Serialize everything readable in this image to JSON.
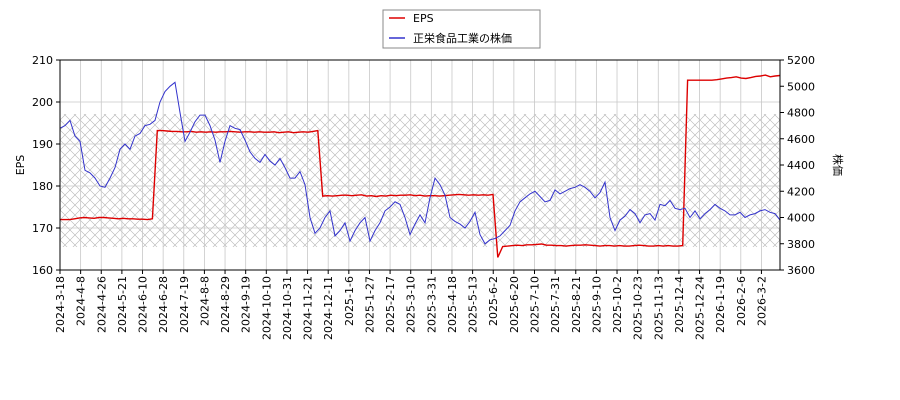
{
  "chart_data": {
    "type": "line",
    "legend": {
      "placement": "top-center",
      "entries": [
        {
          "label": "EPS",
          "color": "#dd0000"
        },
        {
          "label": "正栄食品工業の株価",
          "color": "#3333cc"
        }
      ]
    },
    "left_axis": {
      "label": "EPS",
      "ylim": [
        160,
        210
      ],
      "ticks": [
        160,
        170,
        180,
        190,
        200,
        210
      ]
    },
    "right_axis": {
      "label": "株価",
      "ylim": [
        3600,
        5200
      ],
      "ticks": [
        3600,
        3800,
        4000,
        4200,
        4400,
        4600,
        4800,
        5000,
        5200
      ]
    },
    "grid": true,
    "x_tick_labels": [
      "2024-3-18",
      "2024-4-8",
      "2024-4-26",
      "2024-5-21",
      "2024-6-10",
      "2024-6-28",
      "2024-7-19",
      "2024-8-8",
      "2024-8-29",
      "2024-9-19",
      "2024-10-10",
      "2024-10-31",
      "2024-11-21",
      "2024-12-11",
      "2025-1-6",
      "2025-1-27",
      "2025-2-17",
      "2025-3-10",
      "2025-3-31",
      "2025-4-18",
      "2025-5-13",
      "2025-6-2",
      "2025-6-20",
      "2025-7-10",
      "2025-7-31",
      "2025-8-21",
      "2025-9-10",
      "2025-10-2",
      "2025-10-23",
      "2025-11-13",
      "2025-12-4",
      "2025-12-24",
      "2026-1-19",
      "2026-2-6",
      "2026-3-2"
    ],
    "series": [
      {
        "name": "EPS",
        "axis": "left",
        "color": "#dd0000",
        "values": [
          172,
          172,
          172,
          172.2,
          172.4,
          172.5,
          172.4,
          172.3,
          172.5,
          172.5,
          172.4,
          172.3,
          172.2,
          172.3,
          172.2,
          172.2,
          172.1,
          172.1,
          172.0,
          172.2,
          193.2,
          193.2,
          193.1,
          193.0,
          193.0,
          192.9,
          192.9,
          193.0,
          192.8,
          192.9,
          192.8,
          192.9,
          192.8,
          192.9,
          192.9,
          193.0,
          192.9,
          192.8,
          192.9,
          192.9,
          192.8,
          192.9,
          192.8,
          192.8,
          192.9,
          192.7,
          192.8,
          192.9,
          192.7,
          192.8,
          192.9,
          192.8,
          193.0,
          193.2,
          177.6,
          177.7,
          177.6,
          177.7,
          177.8,
          177.8,
          177.7,
          177.8,
          177.9,
          177.6,
          177.7,
          177.5,
          177.7,
          177.6,
          177.8,
          177.7,
          177.8,
          177.8,
          177.9,
          177.7,
          177.8,
          177.6,
          177.7,
          177.7,
          177.6,
          177.7,
          177.8,
          177.9,
          178.0,
          177.9,
          177.8,
          177.9,
          177.8,
          177.9,
          177.8,
          178.0,
          163.0,
          165.6,
          165.7,
          165.8,
          165.9,
          165.8,
          166.0,
          166.0,
          166.1,
          166.2,
          165.9,
          165.9,
          165.8,
          165.8,
          165.7,
          165.8,
          165.9,
          165.9,
          166.0,
          165.9,
          165.8,
          165.7,
          165.8,
          165.8,
          165.7,
          165.8,
          165.7,
          165.7,
          165.8,
          165.9,
          165.8,
          165.7,
          165.7,
          165.8,
          165.7,
          165.8,
          165.7,
          165.7,
          165.8,
          205.2,
          205.2,
          205.2,
          205.2,
          205.2,
          205.2,
          205.3,
          205.5,
          205.7,
          205.8,
          206.0,
          205.7,
          205.6,
          205.8,
          206.1,
          206.2,
          206.4,
          206.0,
          206.2,
          206.3
        ]
      },
      {
        "name": "正栄食品工業の株価",
        "axis": "right",
        "color": "#3333cc",
        "values": [
          4680,
          4700,
          4740,
          4620,
          4580,
          4360,
          4340,
          4300,
          4240,
          4230,
          4300,
          4380,
          4520,
          4560,
          4520,
          4620,
          4640,
          4700,
          4710,
          4740,
          4880,
          4960,
          5000,
          5030,
          4800,
          4580,
          4650,
          4730,
          4780,
          4780,
          4700,
          4590,
          4420,
          4580,
          4700,
          4680,
          4670,
          4590,
          4500,
          4450,
          4420,
          4480,
          4430,
          4400,
          4450,
          4380,
          4300,
          4300,
          4350,
          4250,
          4000,
          3880,
          3920,
          4000,
          4050,
          3860,
          3900,
          3960,
          3820,
          3900,
          3960,
          4000,
          3820,
          3900,
          3960,
          4050,
          4080,
          4120,
          4100,
          4000,
          3870,
          3950,
          4020,
          3960,
          4150,
          4300,
          4250,
          4170,
          4000,
          3970,
          3950,
          3920,
          3970,
          4040,
          3870,
          3800,
          3830,
          3840,
          3860,
          3900,
          3940,
          4050,
          4120,
          4150,
          4180,
          4200,
          4160,
          4120,
          4130,
          4210,
          4180,
          4200,
          4220,
          4230,
          4250,
          4230,
          4200,
          4150,
          4190,
          4270,
          4000,
          3900,
          3980,
          4010,
          4060,
          4030,
          3960,
          4020,
          4030,
          3980,
          4100,
          4090,
          4130,
          4070,
          4060,
          4070,
          4000,
          4050,
          3990,
          4030,
          4060,
          4100,
          4070,
          4050,
          4020,
          4020,
          4040,
          4000,
          4020,
          4030,
          4050,
          4060,
          4040,
          4030,
          3980
        ]
      }
    ]
  }
}
